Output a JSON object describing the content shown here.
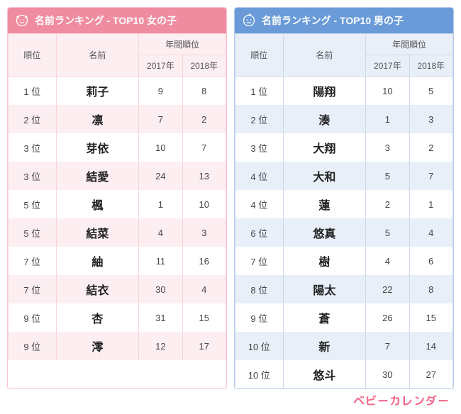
{
  "girls": {
    "title": "名前ランキング - TOP10 女の子",
    "headers": {
      "rank": "順位",
      "name": "名前",
      "annual": "年間順位",
      "y2017": "2017年",
      "y2018": "2018年"
    },
    "rows": [
      {
        "rank": "1 位",
        "name": "莉子",
        "y2017": "9",
        "y2018": "8"
      },
      {
        "rank": "2 位",
        "name": "凛",
        "y2017": "7",
        "y2018": "2"
      },
      {
        "rank": "3 位",
        "name": "芽依",
        "y2017": "10",
        "y2018": "7"
      },
      {
        "rank": "3 位",
        "name": "結愛",
        "y2017": "24",
        "y2018": "13"
      },
      {
        "rank": "5 位",
        "name": "楓",
        "y2017": "1",
        "y2018": "10"
      },
      {
        "rank": "5 位",
        "name": "結菜",
        "y2017": "4",
        "y2018": "3"
      },
      {
        "rank": "7 位",
        "name": "紬",
        "y2017": "11",
        "y2018": "16"
      },
      {
        "rank": "7 位",
        "name": "結衣",
        "y2017": "30",
        "y2018": "4"
      },
      {
        "rank": "9 位",
        "name": "杏",
        "y2017": "31",
        "y2018": "15"
      },
      {
        "rank": "9 位",
        "name": "澪",
        "y2017": "12",
        "y2018": "17"
      }
    ],
    "style": {
      "header_bg": "#f08ca0",
      "row_alt_bg": "#fdeef1",
      "border": "#f7c4cc"
    }
  },
  "boys": {
    "title": "名前ランキング - TOP10 男の子",
    "headers": {
      "rank": "順位",
      "name": "名前",
      "annual": "年間順位",
      "y2017": "2017年",
      "y2018": "2018年"
    },
    "rows": [
      {
        "rank": "1 位",
        "name": "陽翔",
        "y2017": "10",
        "y2018": "5"
      },
      {
        "rank": "2 位",
        "name": "湊",
        "y2017": "1",
        "y2018": "3"
      },
      {
        "rank": "3 位",
        "name": "大翔",
        "y2017": "3",
        "y2018": "2"
      },
      {
        "rank": "4 位",
        "name": "大和",
        "y2017": "5",
        "y2018": "7"
      },
      {
        "rank": "4 位",
        "name": "蓮",
        "y2017": "2",
        "y2018": "1"
      },
      {
        "rank": "6 位",
        "name": "悠真",
        "y2017": "5",
        "y2018": "4"
      },
      {
        "rank": "7 位",
        "name": "樹",
        "y2017": "4",
        "y2018": "6"
      },
      {
        "rank": "8 位",
        "name": "陽太",
        "y2017": "22",
        "y2018": "8"
      },
      {
        "rank": "9 位",
        "name": "蒼",
        "y2017": "26",
        "y2018": "15"
      },
      {
        "rank": "10 位",
        "name": "新",
        "y2017": "7",
        "y2018": "14"
      },
      {
        "rank": "10 位",
        "name": "悠斗",
        "y2017": "30",
        "y2018": "27"
      }
    ],
    "style": {
      "header_bg": "#6a9bd8",
      "row_alt_bg": "#e8eff9",
      "border": "#b8ccea"
    }
  },
  "brand": "ベビーカレンダー"
}
